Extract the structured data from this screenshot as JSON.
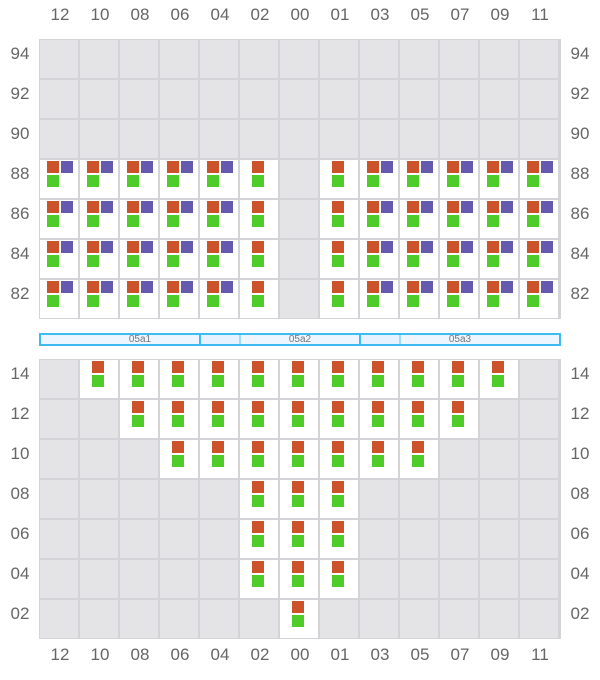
{
  "columns": [
    "12",
    "10",
    "08",
    "06",
    "04",
    "02",
    "00",
    "01",
    "03",
    "05",
    "07",
    "09",
    "11"
  ],
  "colors": {
    "orange": "#cc5229",
    "purple": "#6459ae",
    "green": "#4ecd2a",
    "empty": "#e4e4e7"
  },
  "legend_codes": {
    "OPG": "orange+purple+green",
    "OG": "orange+green",
    "": "empty"
  },
  "top_grid": {
    "rows": [
      {
        "label": "94",
        "cells": [
          "",
          "",
          "",
          "",
          "",
          "",
          "",
          "",
          "",
          "",
          "",
          "",
          ""
        ]
      },
      {
        "label": "92",
        "cells": [
          "",
          "",
          "",
          "",
          "",
          "",
          "",
          "",
          "",
          "",
          "",
          "",
          ""
        ]
      },
      {
        "label": "90",
        "cells": [
          "",
          "",
          "",
          "",
          "",
          "",
          "",
          "",
          "",
          "",
          "",
          "",
          ""
        ]
      },
      {
        "label": "88",
        "cells": [
          "OPG",
          "OPG",
          "OPG",
          "OPG",
          "OPG",
          "OG",
          "",
          "OG",
          "OPG",
          "OPG",
          "OPG",
          "OPG",
          "OPG"
        ]
      },
      {
        "label": "86",
        "cells": [
          "OPG",
          "OPG",
          "OPG",
          "OPG",
          "OPG",
          "OG",
          "",
          "OG",
          "OPG",
          "OPG",
          "OPG",
          "OPG",
          "OPG"
        ]
      },
      {
        "label": "84",
        "cells": [
          "OPG",
          "OPG",
          "OPG",
          "OPG",
          "OPG",
          "OG",
          "",
          "OG",
          "OPG",
          "OPG",
          "OPG",
          "OPG",
          "OPG"
        ]
      },
      {
        "label": "82",
        "cells": [
          "OPG",
          "OPG",
          "OPG",
          "OPG",
          "OPG",
          "OG",
          "",
          "OG",
          "OPG",
          "OPG",
          "OPG",
          "OPG",
          "OPG"
        ]
      }
    ]
  },
  "bottom_grid": {
    "rows": [
      {
        "label": "14",
        "cells": [
          "",
          "OG",
          "OG",
          "OG",
          "OG",
          "OG",
          "OG",
          "OG",
          "OG",
          "OG",
          "OG",
          "OG",
          ""
        ]
      },
      {
        "label": "12",
        "cells": [
          "",
          "",
          "OG",
          "OG",
          "OG",
          "OG",
          "OG",
          "OG",
          "OG",
          "OG",
          "OG",
          "",
          ""
        ]
      },
      {
        "label": "10",
        "cells": [
          "",
          "",
          "",
          "OG",
          "OG",
          "OG",
          "OG",
          "OG",
          "OG",
          "OG",
          "",
          "",
          ""
        ]
      },
      {
        "label": "08",
        "cells": [
          "",
          "",
          "",
          "",
          "",
          "OG",
          "OG",
          "OG",
          "",
          "",
          "",
          "",
          ""
        ]
      },
      {
        "label": "06",
        "cells": [
          "",
          "",
          "",
          "",
          "",
          "OG",
          "OG",
          "OG",
          "",
          "",
          "",
          "",
          ""
        ]
      },
      {
        "label": "04",
        "cells": [
          "",
          "",
          "",
          "",
          "",
          "OG",
          "OG",
          "OG",
          "",
          "",
          "",
          "",
          ""
        ]
      },
      {
        "label": "02",
        "cells": [
          "",
          "",
          "",
          "",
          "",
          "",
          "OG",
          "",
          "",
          "",
          "",
          "",
          ""
        ]
      }
    ]
  },
  "bands": [
    {
      "label": "05a1"
    },
    {
      "label": "05a2"
    },
    {
      "label": "05a3"
    }
  ]
}
